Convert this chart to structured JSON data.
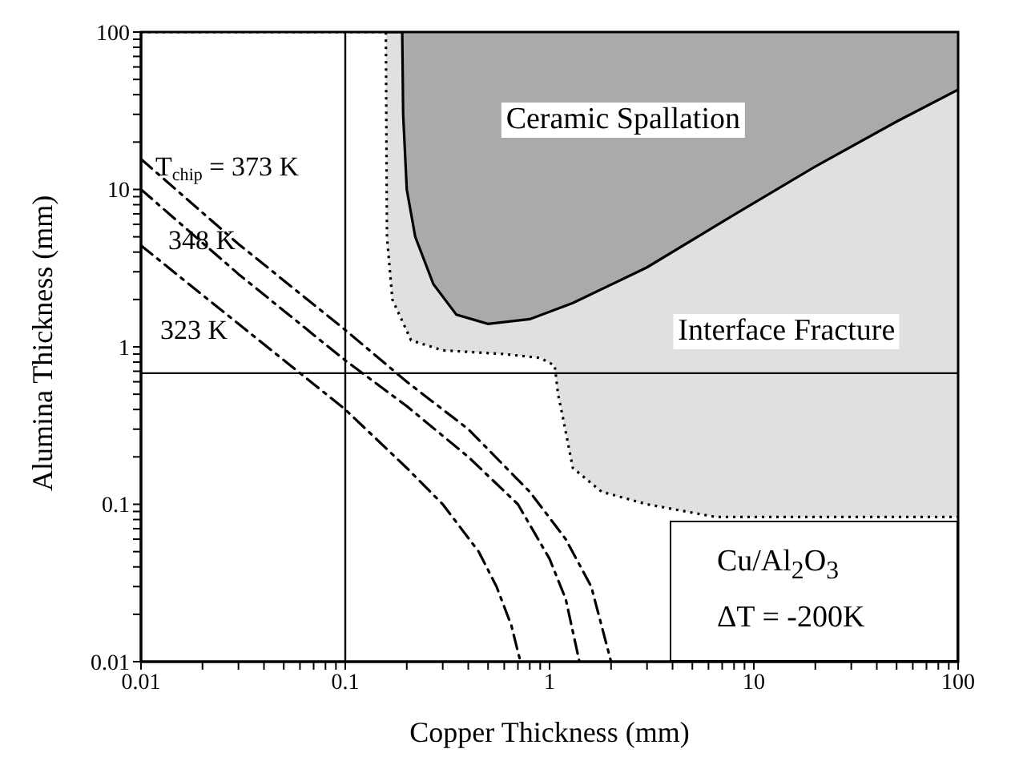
{
  "chart_data": {
    "type": "line",
    "xlabel": "Copper Thickness (mm)",
    "ylabel": "Alumina Thickness (mm)",
    "log": "xy",
    "xlim": [
      0.01,
      100
    ],
    "ylim": [
      0.01,
      100
    ],
    "xticks": [
      0.01,
      {
        "value": 0.02,
        "label": null
      },
      {
        "value": 0.03,
        "label": null
      },
      {
        "value": 0.04,
        "label": null
      },
      {
        "value": 0.05,
        "label": null
      },
      {
        "value": 0.06,
        "label": null
      },
      {
        "value": 0.07,
        "label": null
      },
      {
        "value": 0.08,
        "label": null
      },
      {
        "value": 0.09,
        "label": null
      },
      0.1,
      {
        "value": 0.2,
        "label": null
      },
      {
        "value": 0.3,
        "label": null
      },
      {
        "value": 0.4,
        "label": null
      },
      {
        "value": 0.5,
        "label": null
      },
      {
        "value": 0.6,
        "label": null
      },
      {
        "value": 0.7,
        "label": null
      },
      {
        "value": 0.8,
        "label": null
      },
      {
        "value": 0.9,
        "label": null
      },
      1,
      {
        "value": 2,
        "label": null
      },
      {
        "value": 3,
        "label": null
      },
      {
        "value": 4,
        "label": null
      },
      {
        "value": 5,
        "label": null
      },
      {
        "value": 6,
        "label": null
      },
      {
        "value": 7,
        "label": null
      },
      {
        "value": 8,
        "label": null
      },
      {
        "value": 9,
        "label": null
      },
      10,
      {
        "value": 20,
        "label": null
      },
      {
        "value": 30,
        "label": null
      },
      {
        "value": 40,
        "label": null
      },
      {
        "value": 50,
        "label": null
      },
      {
        "value": 60,
        "label": null
      },
      {
        "value": 70,
        "label": null
      },
      {
        "value": 80,
        "label": null
      },
      {
        "value": 90,
        "label": null
      },
      100
    ],
    "yticks": [
      0.01,
      {
        "value": 0.02,
        "label": null
      },
      {
        "value": 0.03,
        "label": null
      },
      {
        "value": 0.04,
        "label": null
      },
      {
        "value": 0.05,
        "label": null
      },
      {
        "value": 0.06,
        "label": null
      },
      {
        "value": 0.07,
        "label": null
      },
      {
        "value": 0.08,
        "label": null
      },
      {
        "value": 0.09,
        "label": null
      },
      0.1,
      {
        "value": 0.2,
        "label": null
      },
      {
        "value": 0.3,
        "label": null
      },
      {
        "value": 0.4,
        "label": null
      },
      {
        "value": 0.5,
        "label": null
      },
      {
        "value": 0.6,
        "label": null
      },
      {
        "value": 0.7,
        "label": null
      },
      {
        "value": 0.8,
        "label": null
      },
      {
        "value": 0.9,
        "label": null
      },
      1,
      {
        "value": 2,
        "label": null
      },
      {
        "value": 3,
        "label": null
      },
      {
        "value": 4,
        "label": null
      },
      {
        "value": 5,
        "label": null
      },
      {
        "value": 6,
        "label": null
      },
      {
        "value": 7,
        "label": null
      },
      {
        "value": 8,
        "label": null
      },
      {
        "value": 9,
        "label": null
      },
      10,
      {
        "value": 20,
        "label": null
      },
      {
        "value": 30,
        "label": null
      },
      {
        "value": 40,
        "label": null
      },
      {
        "value": 50,
        "label": null
      },
      {
        "value": 60,
        "label": null
      },
      {
        "value": 70,
        "label": null
      },
      {
        "value": 80,
        "label": null
      },
      {
        "value": 90,
        "label": null
      },
      100
    ],
    "marker": "none",
    "series": [
      {
        "type": "area",
        "color": "#aaaaaa",
        "x": [
          0.19,
          100
        ],
        "values": [
          100,
          100
        ]
      },
      {
        "type": "area",
        "color": "#e0e0e0",
        "line_style": "solid",
        "x": [
          0.158,
          0.19,
          0.192,
          0.2,
          0.22,
          0.27,
          0.35,
          0.5,
          0.8,
          1.3,
          3,
          8,
          20,
          50,
          100
        ],
        "values": [
          100,
          100,
          30,
          10,
          5,
          2.5,
          1.6,
          1.4,
          1.5,
          1.9,
          3.2,
          6.9,
          14,
          27,
          43
        ]
      },
      {
        "type": "area",
        "color": "#ffffff",
        "line_style": "dotted",
        "x": [
          0.01,
          0.158,
          0.159,
          0.16,
          0.17,
          0.21,
          0.3,
          0.6,
          0.9,
          1.06,
          1.1,
          1.16,
          1.3,
          1.8,
          3,
          6.5,
          100
        ],
        "values": [
          100,
          100,
          20,
          5,
          2,
          1.1,
          0.95,
          0.9,
          0.85,
          0.76,
          0.5,
          0.36,
          0.17,
          0.12,
          0.1,
          0.083,
          0.083
        ]
      },
      {
        "name": "T$_{chip}$ = 373 K",
        "color": "#000000",
        "line_style": "dashed",
        "x": [
          0.01,
          0.03,
          0.1,
          0.2,
          0.4,
          0.8,
          1.2,
          1.6,
          2.0
        ],
        "values": [
          15.6,
          4.5,
          1.28,
          0.6,
          0.3,
          0.12,
          0.06,
          0.03,
          0.01
        ]
      },
      {
        "name": "348 K",
        "color": "#000000",
        "line_style": "dashed",
        "x": [
          0.01,
          0.03,
          0.1,
          0.2,
          0.4,
          0.7,
          1.0,
          1.2,
          1.4
        ],
        "values": [
          10,
          2.9,
          0.82,
          0.42,
          0.2,
          0.1,
          0.045,
          0.025,
          0.01
        ]
      },
      {
        "name": "323 K",
        "color": "#000000",
        "line_style": "dashed",
        "x": [
          0.01,
          0.03,
          0.1,
          0.2,
          0.3,
          0.45,
          0.55,
          0.65,
          0.72
        ],
        "values": [
          4.4,
          1.4,
          0.4,
          0.17,
          0.1,
          0.05,
          0.03,
          0.017,
          0.01
        ]
      }
    ],
    "ref_lines": [
      {
        "axis": "x",
        "value": 0.1,
        "color": "#000000"
      },
      {
        "axis": "y",
        "value": 0.68,
        "color": "#000000"
      }
    ],
    "annotations": [
      "Ceramic Spallation",
      "Interface Fracture",
      "Cu/Al$_{2}$O$_{3}$",
      "ΔT = -200K"
    ]
  }
}
